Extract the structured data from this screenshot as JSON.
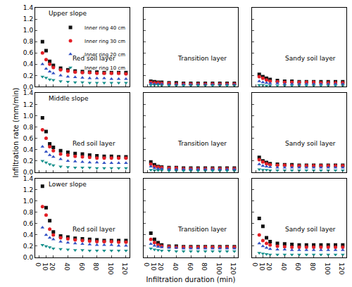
{
  "chart_data": {
    "type": "scatter",
    "x_label": "Infiltration duration (min)",
    "y_label": "Infiltration rate (mm/min)",
    "x": [
      5,
      10,
      15,
      20,
      30,
      40,
      50,
      60,
      70,
      80,
      90,
      100,
      110,
      120
    ],
    "xlim": [
      -5,
      125
    ],
    "xticks": [
      0,
      10,
      20,
      40,
      60,
      80,
      100,
      120
    ],
    "ylim": [
      0,
      1.4
    ],
    "yticks": [
      {
        "value": 0,
        "label": "0.0"
      },
      0.2,
      0.4,
      0.6,
      0.8,
      {
        "value": 1,
        "label": "1.0"
      },
      1.2,
      1.4
    ],
    "legend": "upper right",
    "series": [
      {
        "name": "Inner ring 40 cm",
        "color": "#111111",
        "marker": "square"
      },
      {
        "name": "Inner ring 30 cm",
        "color": "#e41f26",
        "marker": "circle"
      },
      {
        "name": "Inner ring 20 cm",
        "color": "#3352c4",
        "marker": "triangle-up"
      },
      {
        "name": "Inner ring 10 cm",
        "color": "#16918c",
        "marker": "triangle-down"
      }
    ],
    "rows": [
      {
        "label": "Upper slope",
        "panels": [
          {
            "label": "Red soil layer",
            "values": [
              [
                0.8,
                0.64,
                0.45,
                0.38,
                0.33,
                0.3,
                0.28,
                0.27,
                0.26,
                0.26,
                0.25,
                0.25,
                0.25,
                0.25
              ],
              [
                0.6,
                0.48,
                0.4,
                0.34,
                0.3,
                0.28,
                0.26,
                0.25,
                0.25,
                0.24,
                0.24,
                0.24,
                0.24,
                0.23
              ],
              [
                0.4,
                0.32,
                0.27,
                0.24,
                0.2,
                0.18,
                0.17,
                0.16,
                0.15,
                0.15,
                0.15,
                0.14,
                0.14,
                0.14
              ],
              [
                0.18,
                0.16,
                0.13,
                0.12,
                0.1,
                0.09,
                0.08,
                0.08,
                0.07,
                0.07,
                0.07,
                0.07,
                0.07,
                0.07
              ]
            ]
          },
          {
            "label": "Transition layer",
            "values": [
              [
                0.1,
                0.09,
                0.08,
                0.08,
                0.07,
                0.07,
                0.06,
                0.06,
                0.06,
                0.06,
                0.06,
                0.06,
                0.06,
                0.06
              ],
              [
                0.08,
                0.07,
                0.07,
                0.06,
                0.06,
                0.05,
                0.05,
                0.05,
                0.05,
                0.05,
                0.05,
                0.05,
                0.05,
                0.05
              ],
              [
                0.06,
                0.05,
                0.05,
                0.05,
                0.04,
                0.04,
                0.04,
                0.04,
                0.04,
                0.04,
                0.04,
                0.04,
                0.04,
                0.04
              ],
              [
                0.03,
                0.03,
                0.03,
                0.02,
                0.02,
                0.02,
                0.02,
                0.02,
                0.02,
                0.02,
                0.02,
                0.02,
                0.02,
                0.02
              ]
            ]
          },
          {
            "label": "Sandy soil layer",
            "values": [
              [
                0.22,
                0.18,
                0.15,
                0.13,
                0.11,
                0.1,
                0.1,
                0.09,
                0.09,
                0.09,
                0.09,
                0.09,
                0.09,
                0.09
              ],
              [
                0.18,
                0.15,
                0.12,
                0.1,
                0.09,
                0.08,
                0.08,
                0.08,
                0.08,
                0.08,
                0.07,
                0.07,
                0.07,
                0.07
              ],
              [
                0.1,
                0.08,
                0.07,
                0.06,
                0.06,
                0.05,
                0.05,
                0.05,
                0.05,
                0.05,
                0.05,
                0.05,
                0.05,
                0.05
              ],
              [
                0.03,
                0.03,
                0.02,
                0.02,
                0.02,
                0.02,
                0.02,
                0.02,
                0.02,
                0.02,
                0.02,
                0.02,
                0.02,
                0.02
              ]
            ]
          }
        ]
      },
      {
        "label": "Middle slope",
        "panels": [
          {
            "label": "Red soil layer",
            "values": [
              [
                0.96,
                0.72,
                0.5,
                0.44,
                0.38,
                0.35,
                0.33,
                0.32,
                0.3,
                0.29,
                0.28,
                0.28,
                0.27,
                0.27
              ],
              [
                0.75,
                0.6,
                0.45,
                0.38,
                0.32,
                0.3,
                0.28,
                0.27,
                0.26,
                0.25,
                0.25,
                0.25,
                0.25,
                0.25
              ],
              [
                0.45,
                0.36,
                0.3,
                0.27,
                0.23,
                0.2,
                0.19,
                0.18,
                0.17,
                0.17,
                0.16,
                0.16,
                0.16,
                0.16
              ],
              [
                0.2,
                0.17,
                0.14,
                0.12,
                0.1,
                0.09,
                0.08,
                0.08,
                0.08,
                0.07,
                0.07,
                0.07,
                0.07,
                0.07
              ]
            ]
          },
          {
            "label": "Transition layer",
            "values": [
              [
                0.18,
                0.13,
                0.1,
                0.09,
                0.08,
                0.08,
                0.07,
                0.07,
                0.07,
                0.07,
                0.07,
                0.07,
                0.07,
                0.07
              ],
              [
                0.14,
                0.1,
                0.09,
                0.08,
                0.07,
                0.07,
                0.06,
                0.06,
                0.06,
                0.06,
                0.06,
                0.06,
                0.06,
                0.06
              ],
              [
                0.1,
                0.07,
                0.06,
                0.06,
                0.05,
                0.05,
                0.05,
                0.05,
                0.05,
                0.05,
                0.05,
                0.05,
                0.05,
                0.05
              ],
              [
                0.04,
                0.03,
                0.03,
                0.03,
                0.02,
                0.02,
                0.02,
                0.02,
                0.02,
                0.02,
                0.02,
                0.02,
                0.02,
                0.02
              ]
            ]
          },
          {
            "label": "Sandy soil layer",
            "values": [
              [
                0.26,
                0.2,
                0.17,
                0.15,
                0.14,
                0.13,
                0.13,
                0.12,
                0.12,
                0.12,
                0.12,
                0.12,
                0.12,
                0.12
              ],
              [
                0.22,
                0.18,
                0.15,
                0.13,
                0.12,
                0.12,
                0.11,
                0.11,
                0.11,
                0.11,
                0.11,
                0.11,
                0.11,
                0.11
              ],
              [
                0.14,
                0.11,
                0.1,
                0.09,
                0.08,
                0.08,
                0.08,
                0.08,
                0.08,
                0.08,
                0.08,
                0.08,
                0.08,
                0.08
              ],
              [
                0.05,
                0.04,
                0.04,
                0.03,
                0.03,
                0.03,
                0.03,
                0.03,
                0.03,
                0.03,
                0.03,
                0.03,
                0.03,
                0.03
              ]
            ]
          }
        ]
      },
      {
        "label": "Lower slope",
        "panels": [
          {
            "label": "Red soil layer",
            "values": [
              [
                1.26,
                0.88,
                0.65,
                0.45,
                0.38,
                0.36,
                0.34,
                0.33,
                0.32,
                0.31,
                0.3,
                0.3,
                0.3,
                0.3
              ],
              [
                0.9,
                0.75,
                0.5,
                0.4,
                0.35,
                0.33,
                0.31,
                0.3,
                0.29,
                0.28,
                0.28,
                0.28,
                0.27,
                0.27
              ],
              [
                0.53,
                0.4,
                0.35,
                0.32,
                0.28,
                0.26,
                0.25,
                0.24,
                0.23,
                0.22,
                0.22,
                0.22,
                0.21,
                0.21
              ],
              [
                0.22,
                0.2,
                0.18,
                0.16,
                0.15,
                0.14,
                0.13,
                0.13,
                0.12,
                0.12,
                0.12,
                0.12,
                0.12,
                0.12
              ]
            ]
          },
          {
            "label": "Transition layer",
            "values": [
              [
                0.43,
                0.32,
                0.26,
                0.22,
                0.2,
                0.2,
                0.19,
                0.19,
                0.19,
                0.19,
                0.19,
                0.19,
                0.19,
                0.19
              ],
              [
                0.32,
                0.26,
                0.22,
                0.2,
                0.19,
                0.18,
                0.18,
                0.18,
                0.18,
                0.18,
                0.18,
                0.18,
                0.18,
                0.18
              ],
              [
                0.24,
                0.21,
                0.19,
                0.18,
                0.17,
                0.17,
                0.16,
                0.16,
                0.16,
                0.16,
                0.16,
                0.16,
                0.16,
                0.16
              ],
              [
                0.16,
                0.14,
                0.13,
                0.12,
                0.12,
                0.11,
                0.11,
                0.11,
                0.11,
                0.11,
                0.11,
                0.11,
                0.11,
                0.11
              ]
            ]
          },
          {
            "label": "Sandy soil layer",
            "values": [
              [
                0.69,
                0.55,
                0.35,
                0.28,
                0.25,
                0.24,
                0.23,
                0.22,
                0.22,
                0.22,
                0.22,
                0.22,
                0.22,
                0.22
              ],
              [
                0.4,
                0.3,
                0.25,
                0.22,
                0.2,
                0.19,
                0.18,
                0.18,
                0.18,
                0.18,
                0.18,
                0.18,
                0.18,
                0.18
              ],
              [
                0.25,
                0.2,
                0.17,
                0.15,
                0.14,
                0.14,
                0.13,
                0.13,
                0.13,
                0.13,
                0.13,
                0.13,
                0.13,
                0.13
              ],
              [
                0.08,
                0.07,
                0.06,
                0.05,
                0.05,
                0.05,
                0.05,
                0.05,
                0.05,
                0.05,
                0.05,
                0.05,
                0.05,
                0.05
              ]
            ]
          }
        ]
      }
    ]
  }
}
